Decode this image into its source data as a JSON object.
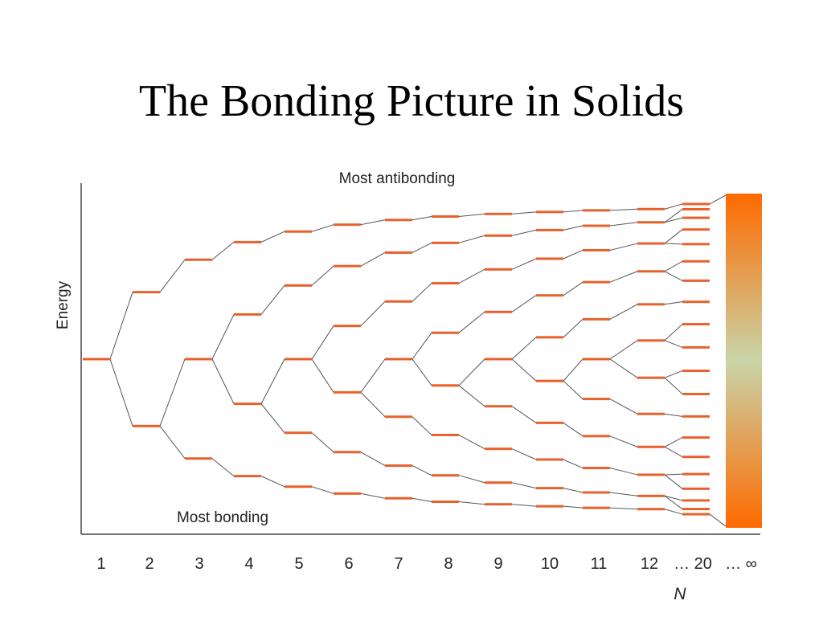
{
  "slide": {
    "title": "The Bonding Picture in Solids"
  },
  "diagram": {
    "top_label": "Most antibonding",
    "bottom_label": "Most bonding",
    "y_axis_label": "Energy",
    "x_axis_label": "N",
    "x_ticks": [
      "1",
      "2",
      "3",
      "4",
      "5",
      "6",
      "7",
      "8",
      "9",
      "10",
      "11",
      "12",
      "… 20",
      "… ∞"
    ],
    "level_counts": [
      1,
      2,
      3,
      4,
      5,
      6,
      7,
      8,
      9,
      10,
      11,
      12,
      20
    ],
    "level_color": "#e8612c",
    "band_color_edge": "#ff6a00",
    "band_color_center": "#c8d4a8",
    "line_color": "#555555"
  }
}
